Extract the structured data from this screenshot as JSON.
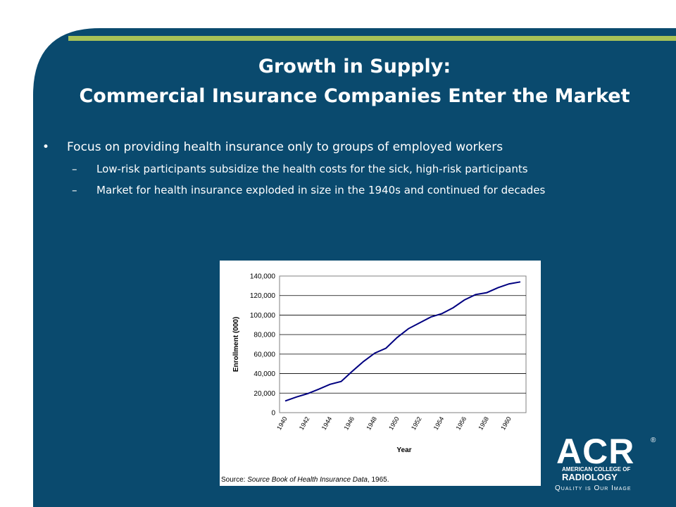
{
  "slide": {
    "title_line1": "Growth in Supply:",
    "title_line2": "Commercial Insurance Companies Enter the Market",
    "bullets": [
      "Focus on providing health insurance only to groups of employed workers"
    ],
    "sub_bullets": [
      "Low-risk participants subsidize the health costs for the sick, high-risk participants",
      "Market for health insurance exploded in size in the 1940s and continued for decades"
    ],
    "colors": {
      "background": "#0a4a6e",
      "accent_bar": "#a8c257",
      "line": "#000080"
    }
  },
  "chart_data": {
    "type": "line",
    "ylabel": "Enrollment (000)",
    "xlabel": "Year",
    "ylim": [
      0,
      140000
    ],
    "yticks": [
      "140,000",
      "120,000",
      "100,000",
      "80,000",
      "60,000",
      "40,000",
      "20,000",
      "0"
    ],
    "xticks": [
      "1940",
      "1942",
      "1944",
      "1946",
      "1948",
      "1950",
      "1952",
      "1954",
      "1956",
      "1958",
      "1960"
    ],
    "x": [
      1940,
      1941,
      1942,
      1943,
      1944,
      1945,
      1946,
      1947,
      1948,
      1949,
      1950,
      1951,
      1952,
      1953,
      1954,
      1955,
      1956,
      1957,
      1958,
      1959,
      1960,
      1961
    ],
    "series": [
      {
        "values": [
          12000,
          16000,
          19500,
          24000,
          29000,
          32000,
          42500,
          52500,
          61000,
          66000,
          77000,
          86000,
          92000,
          98000,
          101500,
          107500,
          115500,
          121000,
          123000,
          128000,
          132000,
          134000
        ]
      }
    ],
    "source_label": "Source: ",
    "source_title": "Source Book of Health Insurance Data",
    "source_year": ", 1965."
  },
  "logo": {
    "acr": "ACR",
    "reg": "®",
    "line1": "AMERICAN COLLEGE OF",
    "line2": "RADIOLOGY",
    "tagline": "Quality is Our Image"
  }
}
